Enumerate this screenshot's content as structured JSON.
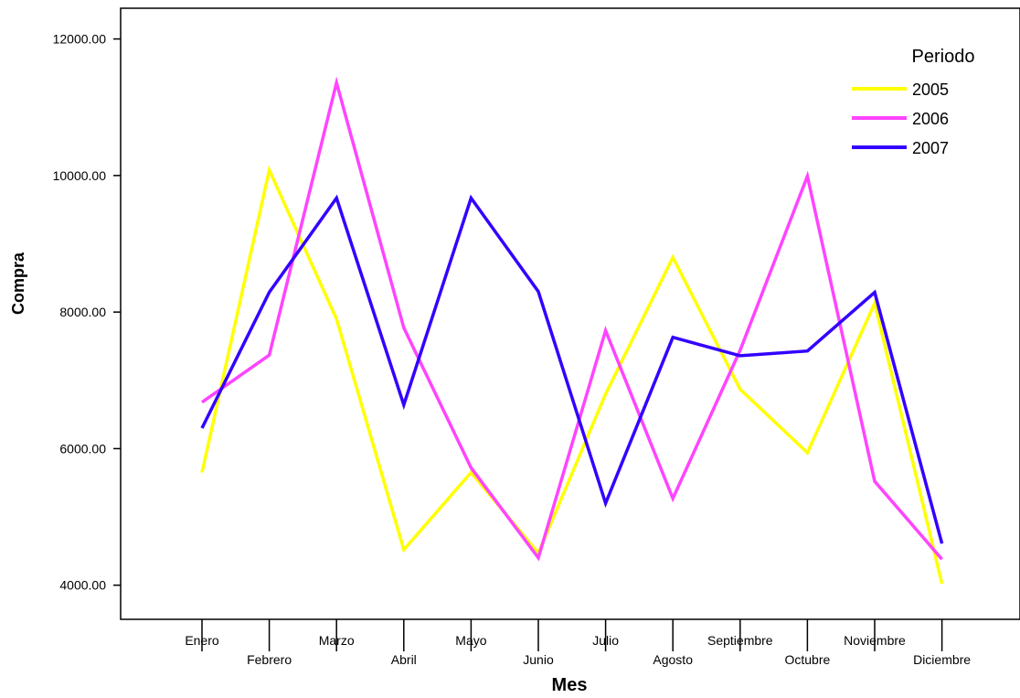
{
  "chart_data": {
    "type": "line",
    "title": "",
    "xlabel": "Mes",
    "ylabel": "Compra",
    "categories": [
      "Enero",
      "Febrero",
      "Marzo",
      "Abril",
      "Mayo",
      "Junio",
      "Julio",
      "Agosto",
      "Septiembre",
      "Octubre",
      "Noviembre",
      "Diciembre"
    ],
    "ylim": [
      3500,
      12450
    ],
    "yticks": [
      4000,
      6000,
      8000,
      10000,
      12000
    ],
    "ytick_labels": [
      "4000.00",
      "6000.00",
      "8000.00",
      "10000.00",
      "12000.00"
    ],
    "grid": false,
    "legend": {
      "title": "Periodo",
      "placement": "top-right"
    },
    "series": [
      {
        "name": "2005",
        "color": "#ffff00",
        "values": [
          5650,
          10080,
          7900,
          4520,
          5650,
          4470,
          6800,
          8800,
          6870,
          5940,
          8130,
          4020
        ]
      },
      {
        "name": "2006",
        "color": "#ff44ff",
        "values": [
          6680,
          7370,
          11360,
          7770,
          5720,
          4400,
          7730,
          5270,
          7440,
          9990,
          5520,
          4380
        ]
      },
      {
        "name": "2007",
        "color": "#3300ff",
        "values": [
          6300,
          8290,
          9670,
          6640,
          9670,
          8300,
          5200,
          7630,
          7360,
          7430,
          8290,
          4610
        ]
      }
    ]
  }
}
